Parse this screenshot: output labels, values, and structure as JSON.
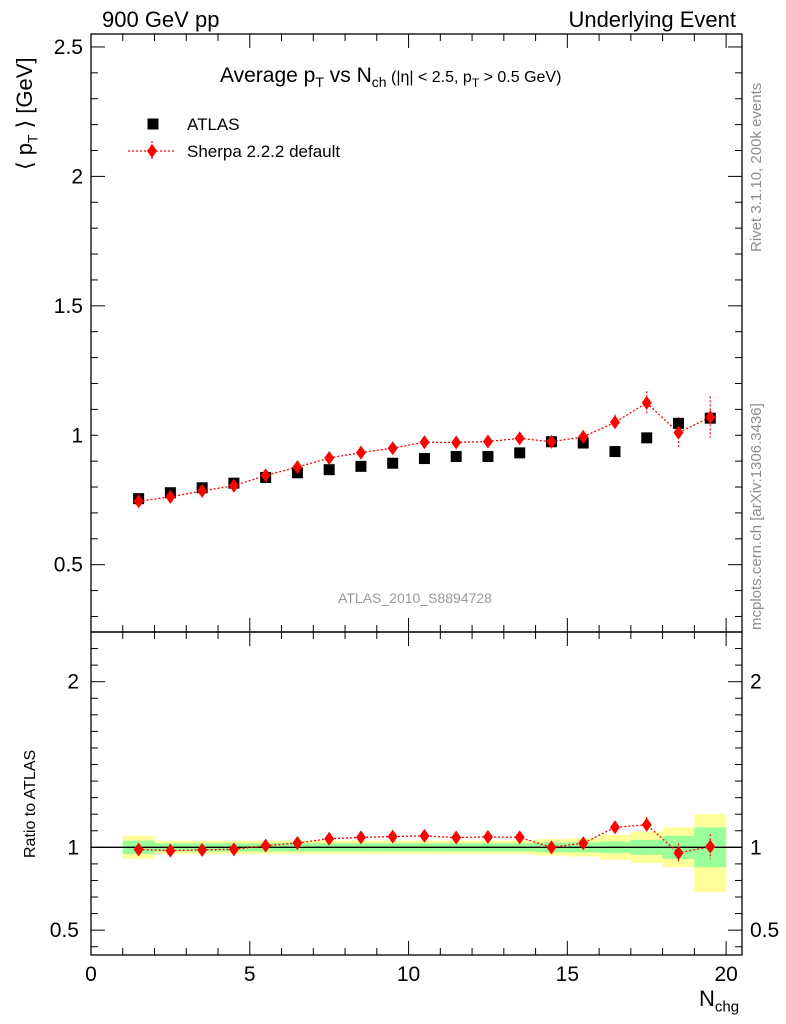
{
  "header": {
    "left": "900 GeV pp",
    "right": "Underlying Event"
  },
  "side_text": {
    "rivet": "Rivet 3.1.10,  200k events",
    "mcplots": "mcplots.cern.ch [arXiv:1306.3436]"
  },
  "colors": {
    "data": "#000000",
    "mc": "#ff0000",
    "band_outer": "#ffff99",
    "band_inner": "#99ff99",
    "watermark": "#999999"
  },
  "chart_data": [
    {
      "type": "scatter",
      "panel": "main",
      "title": "Average p_T vs N_ch (|η| < 2.5, p_T > 0.5 GeV)",
      "title_parts": {
        "a": "Average p",
        "a_sub": "T",
        "b": " vs N",
        "b_sub": "ch",
        "c": " (|η| < 2.5, p",
        "c_sub": "T",
        "d": " > 0.5 GeV)"
      },
      "ylabel": "⟨ p_T ⟩ [GeV]",
      "ylabel_parts": {
        "a": "⟨ p",
        "sub": "T",
        "b": " ⟩ [GeV]"
      },
      "analysis_label": "ATLAS_2010_S8894728",
      "xlim": [
        0,
        20.5
      ],
      "ylim": [
        0.24,
        2.55
      ],
      "yticks": [
        0.5,
        1,
        1.5,
        2,
        2.5
      ],
      "ytick_labels": [
        "0.5",
        "1",
        "1.5",
        "2",
        "2.5"
      ],
      "legend": {
        "position": "top-left"
      },
      "series": [
        {
          "name": "ATLAS",
          "marker": "square",
          "x": [
            1.5,
            2.5,
            3.5,
            4.5,
            5.5,
            6.5,
            7.5,
            8.5,
            9.5,
            10.5,
            11.5,
            12.5,
            13.5,
            14.5,
            15.5,
            16.5,
            17.5,
            18.5,
            19.5
          ],
          "y": [
            0.755,
            0.778,
            0.797,
            0.815,
            0.837,
            0.855,
            0.867,
            0.88,
            0.892,
            0.91,
            0.918,
            0.918,
            0.932,
            0.975,
            0.97,
            0.937,
            0.99,
            1.046,
            1.066
          ]
        },
        {
          "name": "Sherpa 2.2.2 default",
          "marker": "diamond",
          "line": "dotted",
          "x": [
            1.5,
            2.5,
            3.5,
            4.5,
            5.5,
            6.5,
            7.5,
            8.5,
            9.5,
            10.5,
            11.5,
            12.5,
            13.5,
            14.5,
            15.5,
            16.5,
            17.5,
            18.5,
            19.5
          ],
          "y": [
            0.745,
            0.762,
            0.785,
            0.805,
            0.845,
            0.877,
            0.912,
            0.933,
            0.95,
            0.973,
            0.972,
            0.976,
            0.988,
            0.975,
            0.994,
            1.05,
            1.125,
            1.01,
            1.07
          ],
          "yerr": [
            0.006,
            0.006,
            0.006,
            0.006,
            0.007,
            0.008,
            0.009,
            0.01,
            0.011,
            0.012,
            0.014,
            0.015,
            0.017,
            0.019,
            0.022,
            0.03,
            0.045,
            0.06,
            0.08
          ]
        }
      ]
    },
    {
      "type": "scatter",
      "panel": "ratio",
      "ylabel": "Ratio to ATLAS",
      "xlabel": "N_chg",
      "xlabel_parts": {
        "a": "N",
        "sub": "chg"
      },
      "xlim": [
        0,
        20.5
      ],
      "ylim": [
        0.35,
        2.3
      ],
      "xticks": [
        0,
        5,
        10,
        15,
        20
      ],
      "xtick_labels": [
        "0",
        "5",
        "10",
        "15",
        "20"
      ],
      "yticks": [
        0.5,
        1,
        2
      ],
      "ytick_labels": [
        "0.5",
        "1",
        "2"
      ],
      "bands": {
        "edges": [
          1,
          2,
          3,
          4,
          5,
          6,
          7,
          8,
          9,
          10,
          11,
          12,
          13,
          14,
          15,
          16,
          17,
          18,
          19,
          20
        ],
        "inner": [
          [
            0.96,
            1.04
          ],
          [
            0.975,
            1.025
          ],
          [
            0.975,
            1.025
          ],
          [
            0.975,
            1.025
          ],
          [
            0.975,
            1.025
          ],
          [
            0.975,
            1.025
          ],
          [
            0.975,
            1.025
          ],
          [
            0.975,
            1.025
          ],
          [
            0.975,
            1.025
          ],
          [
            0.975,
            1.025
          ],
          [
            0.975,
            1.025
          ],
          [
            0.975,
            1.025
          ],
          [
            0.975,
            1.025
          ],
          [
            0.97,
            1.03
          ],
          [
            0.97,
            1.03
          ],
          [
            0.965,
            1.035
          ],
          [
            0.955,
            1.045
          ],
          [
            0.93,
            1.07
          ],
          [
            0.88,
            1.12
          ]
        ],
        "outer": [
          [
            0.93,
            1.07
          ],
          [
            0.96,
            1.04
          ],
          [
            0.96,
            1.04
          ],
          [
            0.96,
            1.04
          ],
          [
            0.96,
            1.04
          ],
          [
            0.96,
            1.04
          ],
          [
            0.96,
            1.04
          ],
          [
            0.96,
            1.04
          ],
          [
            0.96,
            1.04
          ],
          [
            0.96,
            1.04
          ],
          [
            0.96,
            1.04
          ],
          [
            0.96,
            1.04
          ],
          [
            0.96,
            1.04
          ],
          [
            0.95,
            1.05
          ],
          [
            0.945,
            1.055
          ],
          [
            0.925,
            1.075
          ],
          [
            0.905,
            1.095
          ],
          [
            0.88,
            1.12
          ],
          [
            0.73,
            1.2
          ]
        ]
      },
      "series": [
        {
          "name": "Sherpa 2.2.2 default",
          "x": [
            1.5,
            2.5,
            3.5,
            4.5,
            5.5,
            6.5,
            7.5,
            8.5,
            9.5,
            10.5,
            11.5,
            12.5,
            13.5,
            14.5,
            15.5,
            16.5,
            17.5,
            18.5,
            19.5
          ],
          "y": [
            0.987,
            0.98,
            0.985,
            0.988,
            1.01,
            1.026,
            1.052,
            1.06,
            1.065,
            1.069,
            1.059,
            1.063,
            1.06,
            1.0,
            1.025,
            1.121,
            1.136,
            0.966,
            1.004
          ],
          "yerr": [
            0.008,
            0.008,
            0.008,
            0.008,
            0.009,
            0.009,
            0.01,
            0.011,
            0.012,
            0.013,
            0.015,
            0.016,
            0.018,
            0.02,
            0.023,
            0.032,
            0.046,
            0.058,
            0.075
          ]
        }
      ]
    }
  ]
}
